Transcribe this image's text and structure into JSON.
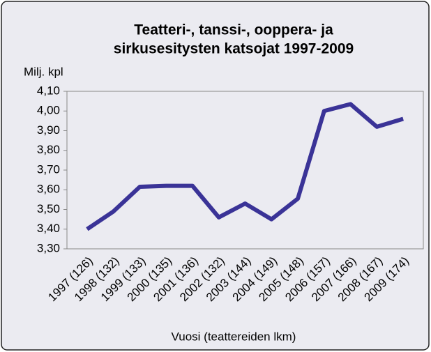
{
  "chart_data": {
    "type": "line",
    "title": [
      "Teatteri-, tanssi-, ooppera- ja",
      "sirkusesitysten katsojat 1997-2009"
    ],
    "y_label": "Milj. kpl",
    "x_label": "Vuosi (teattereiden lkm)",
    "categories": [
      "1997 (126)",
      "1998 (132)",
      "1999 (133)",
      "2000 (135)",
      "2001 (136)",
      "2002 (132)",
      "2003 (144)",
      "2004 (149)",
      "2005 (148)",
      "2006 (157)",
      "2007 (166)",
      "2008 (167)",
      "2009 (174)"
    ],
    "series": [
      {
        "color": "#3a3397",
        "values": [
          3.4,
          3.49,
          3.615,
          3.62,
          3.62,
          3.46,
          3.53,
          3.45,
          3.555,
          4.0,
          4.035,
          3.92,
          3.96
        ]
      }
    ],
    "ylim": [
      3.3,
      4.1
    ],
    "yticks": [
      {
        "value": 3.3,
        "label": "3,30"
      },
      {
        "value": 3.4,
        "label": "3,40"
      },
      {
        "value": 3.5,
        "label": "3,50"
      },
      {
        "value": 3.6,
        "label": "3,60"
      },
      {
        "value": 3.7,
        "label": "3,70"
      },
      {
        "value": 3.8,
        "label": "3,80"
      },
      {
        "value": 3.9,
        "label": "3,90"
      },
      {
        "value": 4.0,
        "label": "4,00"
      },
      {
        "value": 4.1,
        "label": "4,10"
      }
    ],
    "grid": false
  }
}
